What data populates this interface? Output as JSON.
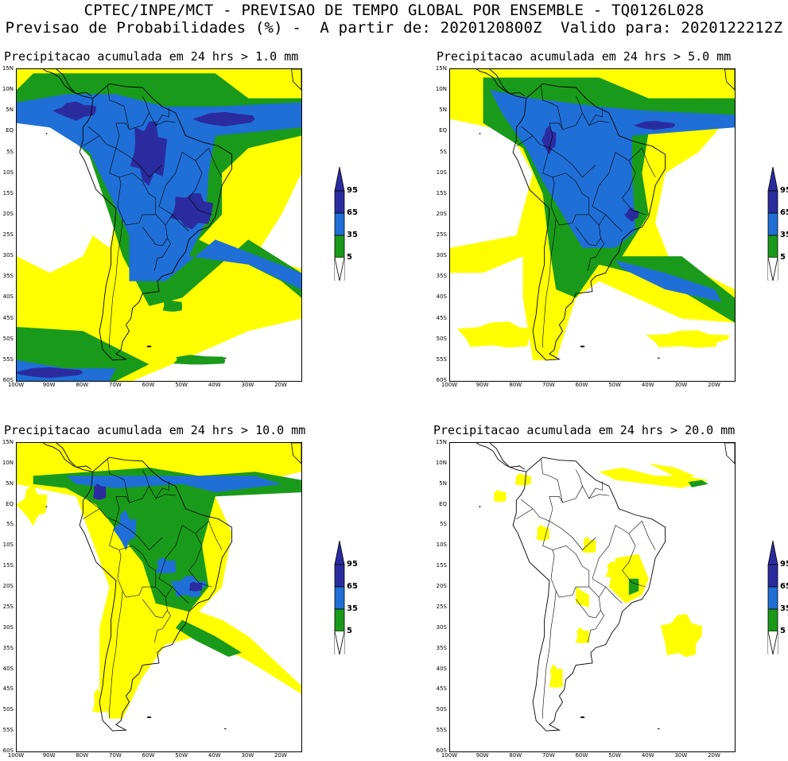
{
  "header": {
    "line1": "CPTEC/INPE/MCT - PREVISAO DE TEMPO GLOBAL POR ENSEMBLE - TQ0126L028",
    "line2": "Previsao de Probabilidades (%) -  A partir de: 2020120800Z  Valido para: 2020122212Z"
  },
  "panels": [
    {
      "title": "Precipitacao acumulada em 24 hrs > 1.0 mm"
    },
    {
      "title": "Precipitacao acumulada em 24 hrs > 5.0 mm"
    },
    {
      "title": "Precipitacao acumulada em 24 hrs > 10.0 mm"
    },
    {
      "title": "Precipitacao acumulada em 24 hrs > 20.0 mm"
    }
  ],
  "lat_labels": [
    "15N",
    "10N",
    "5N",
    "EQ",
    "5S",
    "10S",
    "15S",
    "20S",
    "25S",
    "30S",
    "35S",
    "40S",
    "45S",
    "50S",
    "55S",
    "60S"
  ],
  "lon_labels": [
    "100W",
    "90W",
    "80W",
    "70W",
    "60W",
    "50W",
    "40W",
    "30W",
    "20W"
  ],
  "legend": {
    "labels": [
      "95",
      "65",
      "35",
      "5"
    ],
    "colors": {
      "c95": "#2b2ba0",
      "c65": "#1f6fd6",
      "c35": "#1a9a1a",
      "c5": "#ffff00",
      "bg": "#ffffff"
    }
  }
}
